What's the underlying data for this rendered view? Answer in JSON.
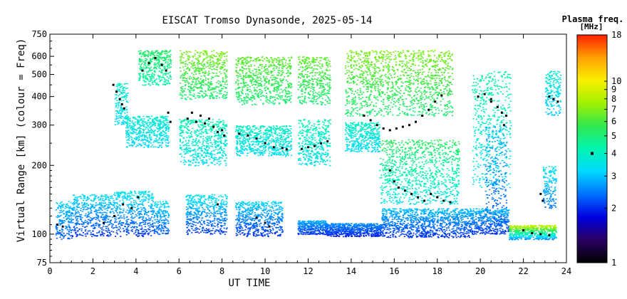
{
  "chart_data": {
    "type": "scatter",
    "title": "EISCAT Tromso Dynasonde, 2025-05-14",
    "xlabel": "UT TIME",
    "ylabel": "Virtual Range [km] (colour = Freq)",
    "xlim": [
      0,
      24
    ],
    "x_ticks": [
      0,
      2,
      4,
      6,
      8,
      10,
      12,
      14,
      16,
      18,
      20,
      22,
      24
    ],
    "ylim": [
      75,
      750
    ],
    "y_scale": "log",
    "y_ticks": [
      75,
      100,
      200,
      300,
      400,
      500,
      600,
      750
    ],
    "colorbar": {
      "title_line1": "Plasma freq.",
      "title_line2": "[MHz]",
      "range": [
        1,
        18
      ],
      "scale": "log",
      "ticks": [
        1,
        2,
        3,
        4,
        5,
        6,
        7,
        8,
        9,
        10,
        18
      ],
      "marker_at": 4,
      "colormap": [
        "#000000",
        "#2a0060",
        "#0000e0",
        "#0070ff",
        "#00d8ff",
        "#00f5b0",
        "#30e850",
        "#a0f000",
        "#f8f000",
        "#ffa000",
        "#ff2000"
      ]
    },
    "series": [
      {
        "kind": "echo-bands",
        "clusters": [
          {
            "x": [
              0.25,
              1.0
            ],
            "y": [
              95,
              140
            ],
            "f": [
              2.2,
              3.2
            ]
          },
          {
            "x": [
              1.0,
              2.9
            ],
            "y": [
              98,
              150
            ],
            "f": [
              2.0,
              3.3
            ]
          },
          {
            "x": [
              2.9,
              4.8
            ],
            "y": [
              98,
              155
            ],
            "f": [
              2.0,
              3.5
            ]
          },
          {
            "x": [
              4.8,
              5.5
            ],
            "y": [
              100,
              140
            ],
            "f": [
              2.2,
              3.3
            ]
          },
          {
            "x": [
              6.3,
              8.2
            ],
            "y": [
              100,
              150
            ],
            "f": [
              2.0,
              3.5
            ]
          },
          {
            "x": [
              8.6,
              10.8
            ],
            "y": [
              98,
              140
            ],
            "f": [
              2.0,
              3.2
            ]
          },
          {
            "x": [
              11.5,
              12.8
            ],
            "y": [
              100,
              115
            ],
            "f": [
              2.0,
              2.8
            ]
          },
          {
            "x": [
              12.8,
              15.4
            ],
            "y": [
              98,
              112
            ],
            "f": [
              1.9,
              2.6
            ]
          },
          {
            "x": [
              15.4,
              19.5
            ],
            "y": [
              97,
              130
            ],
            "f": [
              2.0,
              3.0
            ]
          },
          {
            "x": [
              19.5,
              21.3
            ],
            "y": [
              100,
              130
            ],
            "f": [
              2.0,
              3.0
            ]
          },
          {
            "x": [
              21.3,
              23.5
            ],
            "y": [
              95,
              110
            ],
            "f": [
              2.5,
              9.0
            ]
          },
          {
            "x": [
              3.0,
              3.6
            ],
            "y": [
              300,
              460
            ],
            "f": [
              3.2,
              4.0
            ]
          },
          {
            "x": [
              3.5,
              5.5
            ],
            "y": [
              240,
              330
            ],
            "f": [
              3.2,
              3.8
            ]
          },
          {
            "x": [
              4.1,
              5.6
            ],
            "y": [
              450,
              640
            ],
            "f": [
              4.3,
              5.3
            ]
          },
          {
            "x": [
              6.0,
              8.2
            ],
            "y": [
              200,
              320
            ],
            "f": [
              3.3,
              4.3
            ]
          },
          {
            "x": [
              6.0,
              8.2
            ],
            "y": [
              390,
              640
            ],
            "f": [
              5.0,
              7.0
            ]
          },
          {
            "x": [
              8.6,
              11.2
            ],
            "y": [
              220,
              300
            ],
            "f": [
              3.3,
              4.0
            ]
          },
          {
            "x": [
              8.6,
              11.2
            ],
            "y": [
              370,
              600
            ],
            "f": [
              5.0,
              6.5
            ]
          },
          {
            "x": [
              11.5,
              13.0
            ],
            "y": [
              200,
              320
            ],
            "f": [
              3.4,
              4.3
            ]
          },
          {
            "x": [
              11.5,
              13.0
            ],
            "y": [
              370,
              600
            ],
            "f": [
              5.0,
              6.5
            ]
          },
          {
            "x": [
              13.7,
              15.3
            ],
            "y": [
              230,
              310
            ],
            "f": [
              3.2,
              4.0
            ]
          },
          {
            "x": [
              13.7,
              18.7
            ],
            "y": [
              330,
              640
            ],
            "f": [
              5.0,
              7.0
            ]
          },
          {
            "x": [
              15.3,
              19.0
            ],
            "y": [
              135,
              260
            ],
            "f": [
              3.4,
              5.5
            ]
          },
          {
            "x": [
              19.6,
              21.4
            ],
            "y": [
              160,
              520
            ],
            "f": [
              3.3,
              4.5
            ]
          },
          {
            "x": [
              20.2,
              21.2
            ],
            "y": [
              110,
              300
            ],
            "f": [
              2.2,
              3.0
            ]
          },
          {
            "x": [
              23.0,
              23.7
            ],
            "y": [
              330,
              520
            ],
            "f": [
              3.0,
              3.8
            ]
          },
          {
            "x": [
              22.9,
              23.5
            ],
            "y": [
              130,
              200
            ],
            "f": [
              2.4,
              3.5
            ]
          }
        ]
      },
      {
        "kind": "scaled-virtual-height",
        "points": [
          [
            2.95,
            450
          ],
          [
            3.1,
            420
          ],
          [
            3.25,
            390
          ],
          [
            3.35,
            370
          ],
          [
            3.45,
            355
          ],
          [
            4.3,
            520
          ],
          [
            4.6,
            560
          ],
          [
            4.9,
            590
          ],
          [
            5.2,
            550
          ],
          [
            5.4,
            520
          ],
          [
            5.5,
            340
          ],
          [
            5.6,
            310
          ],
          [
            6.4,
            320
          ],
          [
            6.8,
            310
          ],
          [
            7.2,
            305
          ],
          [
            7.6,
            295
          ],
          [
            8.0,
            285
          ],
          [
            6.6,
            340
          ],
          [
            7.0,
            330
          ],
          [
            7.4,
            320
          ],
          [
            7.8,
            280
          ],
          [
            8.1,
            270
          ],
          [
            8.8,
            275
          ],
          [
            9.2,
            270
          ],
          [
            9.6,
            262
          ],
          [
            10.0,
            250
          ],
          [
            10.4,
            240
          ],
          [
            10.8,
            238
          ],
          [
            11.0,
            235
          ],
          [
            11.7,
            236
          ],
          [
            12.0,
            240
          ],
          [
            12.3,
            243
          ],
          [
            12.6,
            250
          ],
          [
            12.9,
            255
          ],
          [
            14.6,
            330
          ],
          [
            14.9,
            315
          ],
          [
            15.2,
            300
          ],
          [
            15.5,
            290
          ],
          [
            15.8,
            285
          ],
          [
            16.1,
            290
          ],
          [
            16.4,
            295
          ],
          [
            16.7,
            300
          ],
          [
            17.0,
            310
          ],
          [
            17.3,
            330
          ],
          [
            17.6,
            350
          ],
          [
            17.9,
            380
          ],
          [
            18.2,
            405
          ],
          [
            15.8,
            190
          ],
          [
            16.0,
            170
          ],
          [
            16.2,
            160
          ],
          [
            16.5,
            155
          ],
          [
            16.8,
            150
          ],
          [
            17.1,
            145
          ],
          [
            17.4,
            140
          ],
          [
            17.7,
            150
          ],
          [
            18.0,
            145
          ],
          [
            18.3,
            140
          ],
          [
            18.6,
            138
          ],
          [
            19.9,
            400
          ],
          [
            20.2,
            410
          ],
          [
            20.5,
            390
          ],
          [
            20.8,
            360
          ],
          [
            21.0,
            340
          ],
          [
            21.2,
            330
          ],
          [
            20.5,
            380
          ],
          [
            21.1,
            300
          ],
          [
            23.2,
            400
          ],
          [
            23.4,
            390
          ],
          [
            23.6,
            380
          ],
          [
            0.35,
            110
          ],
          [
            0.6,
            108
          ],
          [
            2.5,
            112
          ],
          [
            3.0,
            120
          ],
          [
            3.4,
            135
          ],
          [
            3.8,
            130
          ],
          [
            4.1,
            145
          ],
          [
            7.8,
            135
          ],
          [
            9.6,
            118
          ],
          [
            10.0,
            112
          ],
          [
            10.2,
            108
          ],
          [
            22.0,
            104
          ],
          [
            22.4,
            101
          ],
          [
            22.8,
            100
          ],
          [
            23.2,
            99
          ],
          [
            22.8,
            150
          ],
          [
            22.9,
            140
          ]
        ]
      }
    ]
  }
}
